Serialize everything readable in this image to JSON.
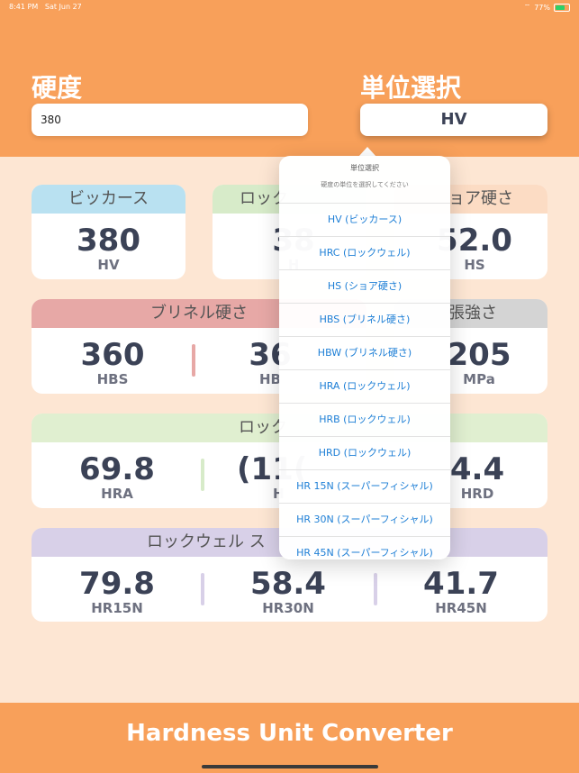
{
  "status": {
    "time": "8:41 PM",
    "date": "Sat Jun 27",
    "battery": "77%"
  },
  "header": {
    "hardness_label": "硬度",
    "unit_label": "単位選択",
    "input_value": "380",
    "selected_unit": "HV"
  },
  "cards": {
    "vickers": {
      "title": "ビッカース",
      "value": "380",
      "unit": "HV"
    },
    "rockwell_c": {
      "title": "ロック",
      "value": "38",
      "unit": "H"
    },
    "shore": {
      "title": "ョア硬さ",
      "value": "52.0",
      "unit": "HS"
    },
    "brinell": {
      "title": "ブリネル硬さ",
      "hbs_value": "360",
      "hbs_unit": "HBS",
      "hbw_value": "36",
      "hbw_unit": "HB"
    },
    "tensile": {
      "title": "張強さ",
      "value": "205",
      "unit": "MPa"
    },
    "rockwell": {
      "title": "ロック",
      "hra_value": "69.8",
      "hra_unit": "HRA",
      "hrb_value": "(11(",
      "hrb_unit": "H",
      "hrd_value": "4.4",
      "hrd_unit": "HRD"
    },
    "superficial": {
      "title": "ロックウェル ス",
      "hr15n_value": "79.8",
      "hr15n_unit": "HR15N",
      "hr30n_value": "58.4",
      "hr30n_unit": "HR30N",
      "hr45n_value": "41.7",
      "hr45n_unit": "HR45N"
    }
  },
  "popover": {
    "title": "単位選択",
    "subtitle": "硬度の単位を選択してください",
    "items": [
      "HV (ビッカース)",
      "HRC (ロックウェル)",
      "HS (ショア硬さ)",
      "HBS (ブリネル硬さ)",
      "HBW (ブリネル硬さ)",
      "HRA (ロックウェル)",
      "HRB (ロックウェル)",
      "HRD (ロックウェル)",
      "HR 15N (スーパーフィシャル)",
      "HR 30N (スーパーフィシャル)",
      "HR 45N (スーパーフィシャル)"
    ]
  },
  "footer": {
    "title": "Hardness Unit Converter"
  },
  "colors": {
    "accent": "#f8a05a",
    "background": "#fde6d3",
    "vickers": "#b9e1f1",
    "rockwell_c": "#d7ebc9",
    "shore": "#fcdcc4",
    "brinell": "#e7a8a6",
    "tensile": "#d4d4d4",
    "rockwell": "#e0efd0",
    "superficial": "#d8d0e8",
    "link": "#1e7fd6"
  }
}
